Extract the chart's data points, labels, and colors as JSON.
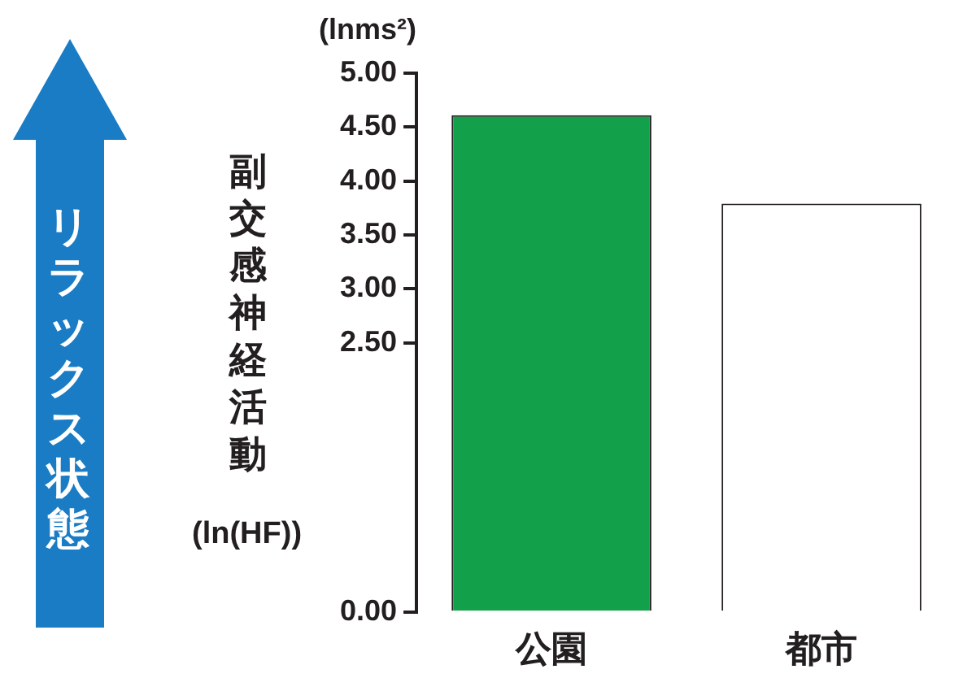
{
  "chart_data": {
    "type": "bar",
    "categories": [
      "公園",
      "都市"
    ],
    "values": [
      4.61,
      3.79
    ],
    "colors": [
      "#12a04a",
      "#ffffff"
    ],
    "ylabel": "副交感神経活動\n(ln(HF))",
    "ylim": [
      0,
      5
    ],
    "yticks": [
      {
        "value": 0,
        "label": "0.00"
      },
      {
        "value": 2.5,
        "label": "2.50"
      },
      {
        "value": 3,
        "label": "3.00"
      },
      {
        "value": 3.5,
        "label": "3.50"
      },
      {
        "value": 4,
        "label": "4.00"
      },
      {
        "value": 4.5,
        "label": "4.50"
      },
      {
        "value": 5,
        "label": "5.00"
      }
    ],
    "annotations": [
      "(lnms²)",
      "リラックス状態"
    ]
  }
}
